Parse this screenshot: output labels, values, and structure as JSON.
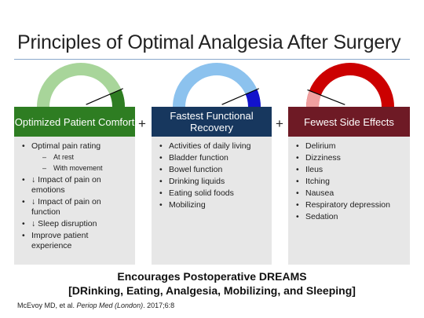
{
  "slide": {
    "title": "Principles of Optimal Analgesia After Surgery"
  },
  "columns": [
    {
      "header": "Optimized Patient Comfort",
      "header_color": "#2e7d22",
      "gauge": {
        "track_color": "#a8d59a",
        "fill_color": "#2e7d22",
        "level": 0.87
      },
      "items": [
        {
          "text": "Optimal pain rating",
          "sub": false
        },
        {
          "text": "At rest",
          "sub": true
        },
        {
          "text": "With movement",
          "sub": true
        },
        {
          "text": "↓ Impact of pain on emotions",
          "sub": false
        },
        {
          "text": "↓ Impact of pain on function",
          "sub": false
        },
        {
          "text": "↓ Sleep disruption",
          "sub": false
        },
        {
          "text": "Improve patient experience",
          "sub": false
        }
      ]
    },
    {
      "header": "Fastest Functional Recovery",
      "header_color": "#17375e",
      "gauge": {
        "track_color": "#8cc2ee",
        "fill_color": "#1212cc",
        "level": 0.87
      },
      "items": [
        {
          "text": "Activities of daily living",
          "sub": false
        },
        {
          "text": "Bladder function",
          "sub": false
        },
        {
          "text": "Bowel function",
          "sub": false
        },
        {
          "text": "Drinking liquids",
          "sub": false
        },
        {
          "text": "Eating solid foods",
          "sub": false
        },
        {
          "text": "Mobilizing",
          "sub": false
        }
      ]
    },
    {
      "header": "Fewest Side Effects",
      "header_color": "#6e1a25",
      "gauge": {
        "track_color": "#cc0000",
        "fill_color": "#f0a0a0",
        "level": 0.12
      },
      "items": [
        {
          "text": "Delirium",
          "sub": false
        },
        {
          "text": "Dizziness",
          "sub": false
        },
        {
          "text": "Ileus",
          "sub": false
        },
        {
          "text": "Itching",
          "sub": false
        },
        {
          "text": "Nausea",
          "sub": false
        },
        {
          "text": "Respiratory depression",
          "sub": false
        },
        {
          "text": "Sedation",
          "sub": false
        }
      ]
    }
  ],
  "operators": [
    "+",
    "+"
  ],
  "bullet_symbol": "•",
  "sub_bullet_symbol": "–",
  "footer": {
    "line1": "Encourages Postoperative DREAMS",
    "line2": "[DRinking, Eating, Analgesia, Mobilizing, and Sleeping]"
  },
  "citation": {
    "prefix": "McEvoy MD, et al. ",
    "journal": "Periop Med (London)",
    "suffix": ". 2017;6:8"
  }
}
